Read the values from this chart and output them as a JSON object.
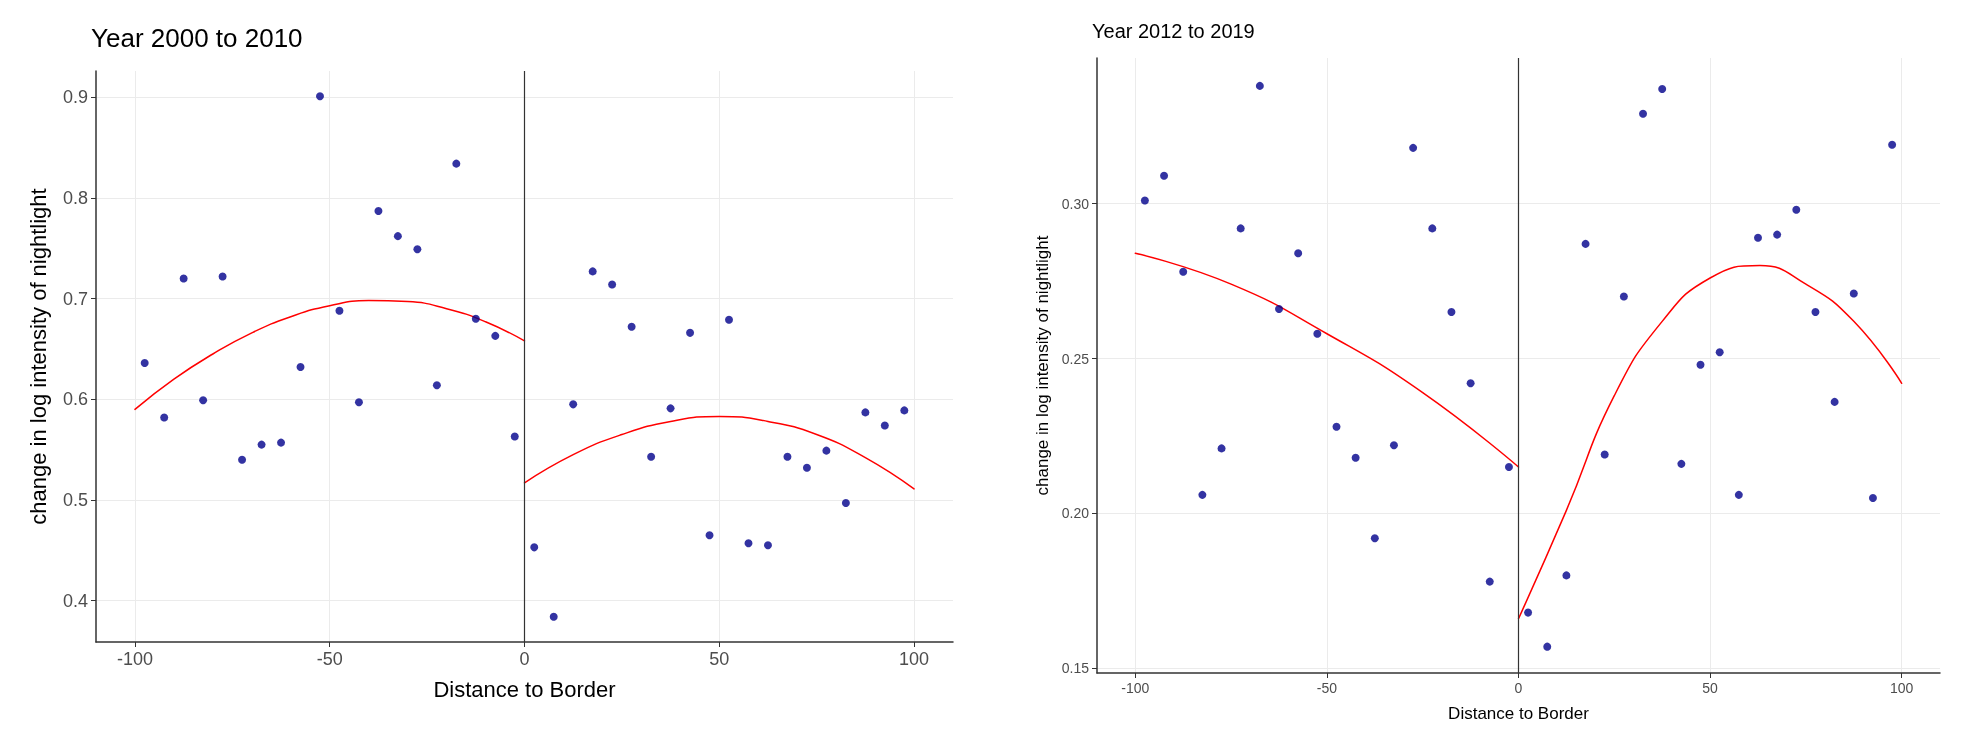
{
  "chart_data": [
    {
      "type": "scatter",
      "title": "Year 2000 to 2010",
      "xlabel": "Distance to Border",
      "ylabel": "change in log intensity of nightlight",
      "xlim": [
        -110,
        110
      ],
      "xticks": [
        -100,
        -50,
        0,
        50,
        100
      ],
      "ylim": [
        0.359,
        0.926
      ],
      "yticks": [
        0.4,
        0.5,
        0.6,
        0.7,
        0.8,
        0.9
      ],
      "grid": true,
      "marker": "circle",
      "series": [
        {
          "color": "#00008b",
          "x": [
            -97.5,
            -92.5,
            -87.5,
            -82.5,
            -77.5,
            -72.5,
            -67.5,
            -62.5,
            -57.5,
            -52.5,
            -47.5,
            -42.5,
            -37.5,
            -32.5,
            -27.5,
            -22.5,
            -17.5,
            -12.5,
            -7.5,
            -2.5,
            2.5,
            7.5,
            12.5,
            17.5,
            22.5,
            27.5,
            32.5,
            37.5,
            42.5,
            47.5,
            52.5,
            57.5,
            62.5,
            67.5,
            72.5,
            77.5,
            82.5,
            87.5,
            92.5,
            97.5
          ],
          "values": [
            0.636,
            0.582,
            0.72,
            0.599,
            0.722,
            0.54,
            0.555,
            0.557,
            0.632,
            0.901,
            0.688,
            0.597,
            0.787,
            0.762,
            0.749,
            0.614,
            0.834,
            0.68,
            0.663,
            0.563,
            0.453,
            0.384,
            0.595,
            0.727,
            0.714,
            0.672,
            0.543,
            0.591,
            0.666,
            0.465,
            0.679,
            0.457,
            0.455,
            0.543,
            0.532,
            0.549,
            0.497,
            0.587,
            0.574,
            0.589
          ]
        },
        {
          "type": "line",
          "color": "#ff0000",
          "marker": "none",
          "x": [
            -100,
            -90,
            -80,
            -70,
            -60,
            -50,
            -40,
            -30,
            -20,
            -10,
            0
          ],
          "values": [
            0.59,
            0.62,
            0.645,
            0.666,
            0.682,
            0.693,
            0.698,
            0.697,
            0.69,
            0.677,
            0.658
          ]
        },
        {
          "type": "line",
          "color": "#ff0000",
          "marker": "none",
          "x": [
            0,
            12.5,
            25,
            37.5,
            50,
            62.5,
            75,
            87.5,
            100
          ],
          "values": [
            0.517,
            0.545,
            0.565,
            0.578,
            0.583,
            0.578,
            0.565,
            0.542,
            0.511
          ]
        }
      ],
      "ref_lines": [
        {
          "axis": "x",
          "value": 0,
          "color": "#333333"
        }
      ]
    },
    {
      "type": "scatter",
      "title": "Year 2012 to 2019",
      "xlabel": "Distance to Border",
      "ylabel": "change in log intensity of nightlight",
      "xlim": [
        -110,
        110
      ],
      "xticks": [
        -100,
        -50,
        0,
        50,
        100
      ],
      "ylim": [
        0.1485,
        0.347
      ],
      "yticks": [
        {
          "value": 0.15,
          "label": "0.15"
        },
        {
          "value": 0.2,
          "label": "0.20"
        },
        {
          "value": 0.25,
          "label": "0.25"
        },
        {
          "value": 0.3,
          "label": "0.30"
        }
      ],
      "grid": true,
      "marker": "circle",
      "series": [
        {
          "color": "#00008b",
          "x": [
            -97.5,
            -92.5,
            -87.5,
            -82.5,
            -77.5,
            -72.5,
            -67.5,
            -62.5,
            -57.5,
            -52.5,
            -47.5,
            -42.5,
            -37.5,
            -32.5,
            -27.5,
            -22.5,
            -17.5,
            -12.5,
            -7.5,
            -2.5,
            2.5,
            7.5,
            12.5,
            17.5,
            22.5,
            27.5,
            32.5,
            37.5,
            42.5,
            47.5,
            52.5,
            57.5,
            62.5,
            67.5,
            72.5,
            77.5,
            82.5,
            87.5,
            92.5,
            97.5
          ],
          "values": [
            0.301,
            0.309,
            0.278,
            0.206,
            0.221,
            0.292,
            0.338,
            0.266,
            0.284,
            0.258,
            0.228,
            0.218,
            0.192,
            0.222,
            0.318,
            0.292,
            0.265,
            0.242,
            0.178,
            0.215,
            0.168,
            0.157,
            0.18,
            0.287,
            0.219,
            0.27,
            0.329,
            0.337,
            0.216,
            0.248,
            0.252,
            0.206,
            0.289,
            0.29,
            0.298,
            0.265,
            0.236,
            0.271,
            0.205,
            0.319
          ]
        },
        {
          "type": "line",
          "color": "#ff0000",
          "marker": "none",
          "x": [
            -100,
            -75,
            -50,
            -25,
            0
          ],
          "values": [
            0.284,
            0.274,
            0.258,
            0.239,
            0.215
          ]
        },
        {
          "type": "line",
          "color": "#ff0000",
          "marker": "none",
          "x": [
            0,
            12.5,
            25,
            37.5,
            50,
            63,
            75,
            87.5,
            100
          ],
          "values": [
            0.166,
            0.201,
            0.238,
            0.262,
            0.276,
            0.28,
            0.274,
            0.262,
            0.242
          ]
        }
      ],
      "ref_lines": [
        {
          "axis": "x",
          "value": 0,
          "color": "#333333"
        }
      ]
    }
  ]
}
